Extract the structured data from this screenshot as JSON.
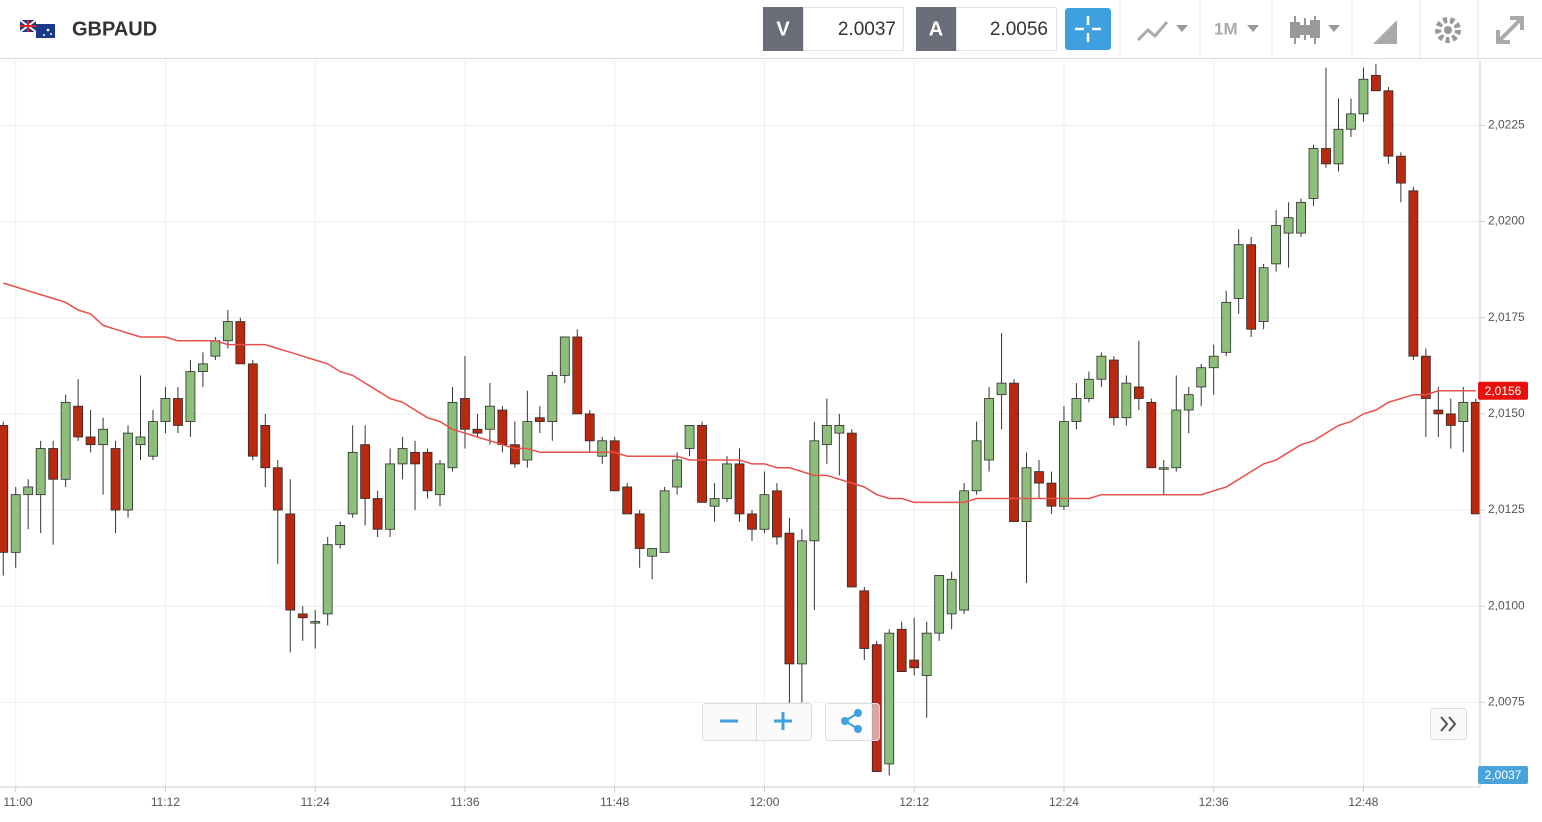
{
  "header": {
    "symbol": "GBPAUD",
    "sell_label": "V",
    "sell_price": "2.0037",
    "buy_label": "A",
    "buy_price": "2.0056",
    "timeframe": "1M"
  },
  "chart_data": {
    "type": "candlestick",
    "categories": [
      null,
      "11:00",
      null,
      null,
      null,
      null,
      null,
      null,
      null,
      null,
      null,
      null,
      null,
      "11:12",
      null,
      null,
      null,
      null,
      null,
      null,
      null,
      null,
      null,
      null,
      null,
      "11:24",
      null,
      null,
      null,
      null,
      null,
      null,
      null,
      null,
      null,
      null,
      null,
      "11:36",
      null,
      null,
      null,
      null,
      null,
      null,
      null,
      null,
      null,
      null,
      null,
      "11:48",
      null,
      null,
      null,
      null,
      null,
      null,
      null,
      null,
      null,
      null,
      null,
      "12:00",
      null,
      null,
      null,
      null,
      null,
      null,
      null,
      null,
      null,
      null,
      null,
      "12:12",
      null,
      null,
      null,
      null,
      null,
      null,
      null,
      null,
      null,
      null,
      null,
      "12:24",
      null,
      null,
      null,
      null,
      null,
      null,
      null,
      null,
      null,
      null,
      null,
      "12:36",
      null,
      null,
      null,
      null,
      null,
      null,
      null,
      null,
      null,
      null,
      null,
      "12:48",
      null,
      null,
      null,
      null,
      null,
      null,
      null,
      null,
      null
    ],
    "open": [
      2.0147,
      2.0114,
      2.0129,
      2.0129,
      2.0141,
      2.0133,
      2.0152,
      2.0144,
      2.0142,
      2.0141,
      2.0125,
      2.0142,
      2.0139,
      2.0148,
      2.0154,
      2.0148,
      2.0161,
      2.0165,
      2.0169,
      2.0174,
      2.0163,
      2.0147,
      2.0136,
      2.0124,
      2.0098,
      2.0096,
      2.0098,
      2.0116,
      2.0124,
      2.0142,
      2.0128,
      2.012,
      2.0137,
      2.014,
      2.014,
      2.0129,
      2.0136,
      2.0154,
      2.0146,
      2.0146,
      2.0151,
      2.0142,
      2.0138,
      2.0149,
      2.0148,
      2.016,
      2.017,
      2.015,
      2.0139,
      2.0143,
      2.0131,
      2.0124,
      2.0113,
      2.0114,
      2.0131,
      2.0141,
      2.0147,
      2.0126,
      2.0128,
      2.0137,
      2.0124,
      2.012,
      2.013,
      2.0119,
      2.0085,
      2.0117,
      2.0142,
      2.0145,
      2.0145,
      2.0104,
      2.009,
      2.0059,
      2.0094,
      2.0086,
      2.0082,
      2.0093,
      2.0098,
      2.0099,
      2.013,
      2.0138,
      2.0155,
      2.0158,
      2.0122,
      2.0135,
      2.0132,
      2.0126,
      2.0148,
      2.0154,
      2.0159,
      2.0164,
      2.0149,
      2.0157,
      2.0153,
      2.0136,
      2.0136,
      2.0151,
      2.0157,
      2.0162,
      2.0166,
      2.018,
      2.0194,
      2.0174,
      2.0189,
      2.0197,
      2.0197,
      2.0206,
      2.0219,
      2.0215,
      2.0224,
      2.0228,
      2.0238,
      2.0234,
      2.0217,
      2.0208,
      2.0165,
      2.0151,
      2.015,
      2.0148,
      2.0153
    ],
    "high": [
      2.0148,
      2.0131,
      2.0133,
      2.0143,
      2.0143,
      2.0155,
      2.0159,
      2.0151,
      2.0149,
      2.0143,
      2.0147,
      2.016,
      2.0151,
      2.0157,
      2.0157,
      2.0164,
      2.0166,
      2.017,
      2.0177,
      2.0175,
      2.0164,
      2.015,
      2.0138,
      2.0133,
      2.01,
      2.0099,
      2.0118,
      2.0122,
      2.0147,
      2.0147,
      2.013,
      2.0141,
      2.0144,
      2.0143,
      2.0141,
      2.0138,
      2.0157,
      2.0165,
      2.015,
      2.0158,
      2.0152,
      2.0148,
      2.0156,
      2.0152,
      2.0161,
      2.017,
      2.0172,
      2.0151,
      2.0144,
      2.0144,
      2.0132,
      2.0125,
      2.0115,
      2.0131,
      2.014,
      2.0147,
      2.0148,
      2.0132,
      2.0139,
      2.0141,
      2.0125,
      2.0135,
      2.0132,
      2.0123,
      2.012,
      2.0148,
      2.0154,
      2.015,
      2.0146,
      2.0105,
      2.0091,
      2.0094,
      2.0096,
      2.0097,
      2.0096,
      2.0108,
      2.0109,
      2.0132,
      2.0148,
      2.0157,
      2.0171,
      2.0159,
      2.014,
      2.0138,
      2.0135,
      2.0152,
      2.0158,
      2.0161,
      2.0166,
      2.0165,
      2.016,
      2.0169,
      2.0154,
      2.0138,
      2.016,
      2.0157,
      2.0163,
      2.0168,
      2.0182,
      2.0198,
      2.0196,
      2.0189,
      2.0203,
      2.0205,
      2.0206,
      2.022,
      2.024,
      2.0232,
      2.0232,
      2.024,
      2.0241,
      2.0235,
      2.0218,
      2.0209,
      2.0167,
      2.0157,
      2.0154,
      2.0157,
      2.0154
    ],
    "low": [
      2.0108,
      2.011,
      2.012,
      2.0119,
      2.0116,
      2.0131,
      2.0143,
      2.014,
      2.0129,
      2.0119,
      2.0123,
      2.0138,
      2.0138,
      2.0145,
      2.0145,
      2.0144,
      2.0157,
      2.0164,
      2.0167,
      2.0163,
      2.0138,
      2.0131,
      2.0111,
      2.0088,
      2.0091,
      2.0089,
      2.0095,
      2.0115,
      2.0123,
      2.0121,
      2.0118,
      2.0118,
      2.0133,
      2.0125,
      2.0128,
      2.0126,
      2.0135,
      2.0141,
      2.0144,
      2.0142,
      2.014,
      2.0136,
      2.0136,
      2.0145,
      2.0143,
      2.0158,
      2.015,
      2.014,
      2.0137,
      2.013,
      2.0124,
      2.011,
      2.0107,
      2.0114,
      2.0129,
      2.0139,
      2.0127,
      2.0122,
      2.0127,
      2.0122,
      2.0117,
      2.0119,
      2.0116,
      2.0074,
      2.0075,
      2.0099,
      2.0137,
      2.0134,
      2.0105,
      2.0086,
      2.0057,
      2.0056,
      2.0083,
      2.0082,
      2.0071,
      2.0091,
      2.0094,
      2.0098,
      2.0129,
      2.0135,
      2.0146,
      2.0122,
      2.0106,
      2.0128,
      2.0124,
      2.0125,
      2.0146,
      2.0153,
      2.0157,
      2.0147,
      2.0147,
      2.0151,
      2.0136,
      2.0129,
      2.0135,
      2.0145,
      2.0152,
      2.0155,
      2.0165,
      2.0176,
      2.017,
      2.0172,
      2.0187,
      2.0188,
      2.0196,
      2.0204,
      2.0214,
      2.0213,
      2.0222,
      2.0226,
      2.0234,
      2.0215,
      2.0205,
      2.0164,
      2.0144,
      2.0144,
      2.0141,
      2.014,
      2.0124
    ],
    "close": [
      2.0114,
      2.0129,
      2.0131,
      2.0141,
      2.0133,
      2.0153,
      2.0144,
      2.0142,
      2.0146,
      2.0125,
      2.0145,
      2.0144,
      2.0148,
      2.0154,
      2.0147,
      2.0161,
      2.0163,
      2.0169,
      2.0174,
      2.0163,
      2.0139,
      2.0136,
      2.0125,
      2.0099,
      2.0097,
      2.0096,
      2.0116,
      2.0121,
      2.014,
      2.0128,
      2.012,
      2.0137,
      2.0141,
      2.0137,
      2.013,
      2.0137,
      2.0153,
      2.0146,
      2.0145,
      2.0152,
      2.0142,
      2.0137,
      2.0148,
      2.0148,
      2.016,
      2.017,
      2.015,
      2.0143,
      2.0143,
      2.013,
      2.0124,
      2.0115,
      2.0115,
      2.013,
      2.0138,
      2.0147,
      2.0127,
      2.0128,
      2.0137,
      2.0124,
      2.012,
      2.0129,
      2.0118,
      2.0085,
      2.0117,
      2.0143,
      2.0147,
      2.0147,
      2.0105,
      2.0089,
      2.0057,
      2.0093,
      2.0083,
      2.0084,
      2.0093,
      2.0108,
      2.0107,
      2.013,
      2.0143,
      2.0154,
      2.0158,
      2.0122,
      2.0136,
      2.0132,
      2.0126,
      2.0148,
      2.0154,
      2.0159,
      2.0165,
      2.0149,
      2.0158,
      2.0154,
      2.0136,
      2.0136,
      2.0151,
      2.0155,
      2.0162,
      2.0165,
      2.0179,
      2.0194,
      2.0172,
      2.0188,
      2.0199,
      2.0201,
      2.0205,
      2.0219,
      2.0215,
      2.0224,
      2.0228,
      2.0237,
      2.0234,
      2.0217,
      2.021,
      2.0165,
      2.0154,
      2.015,
      2.0147,
      2.0153,
      2.0124
    ],
    "up_color": "#8dbf7a",
    "down_color": "#b8290f",
    "moving_average": {
      "color": "#e8504a",
      "values": [
        2.0184,
        2.0183,
        2.0182,
        2.0181,
        2.018,
        2.0179,
        2.0177,
        2.0176,
        2.0173,
        2.0172,
        2.0171,
        2.017,
        2.017,
        2.017,
        2.0169,
        2.0169,
        2.0169,
        2.0169,
        2.0168,
        2.0168,
        2.0168,
        2.0168,
        2.0167,
        2.0166,
        2.0165,
        2.0164,
        2.0163,
        2.0161,
        2.016,
        2.0158,
        2.0156,
        2.0154,
        2.0153,
        2.0151,
        2.0149,
        2.0148,
        2.0146,
        2.0145,
        2.0144,
        2.0143,
        2.0142,
        2.0141,
        2.0141,
        2.014,
        2.014,
        2.014,
        2.014,
        2.014,
        2.014,
        2.014,
        2.0139,
        2.0139,
        2.0139,
        2.0139,
        2.0139,
        2.0138,
        2.0138,
        2.0138,
        2.0138,
        2.0138,
        2.0137,
        2.0137,
        2.0136,
        2.0136,
        2.0135,
        2.0134,
        2.0134,
        2.0133,
        2.0132,
        2.0131,
        2.0129,
        2.0128,
        2.0128,
        2.0127,
        2.0127,
        2.0127,
        2.0127,
        2.0127,
        2.0128,
        2.0128,
        2.0128,
        2.0128,
        2.0128,
        2.0128,
        2.0128,
        2.0128,
        2.0128,
        2.0128,
        2.0129,
        2.0129,
        2.0129,
        2.0129,
        2.0129,
        2.0129,
        2.0129,
        2.0129,
        2.0129,
        2.013,
        2.0131,
        2.0133,
        2.0135,
        2.0137,
        2.0138,
        2.014,
        2.0142,
        2.0143,
        2.0145,
        2.0147,
        2.0148,
        2.015,
        2.0151,
        2.0153,
        2.0154,
        2.0155,
        2.0155,
        2.0156,
        2.0156,
        2.0156,
        2.0156
      ]
    },
    "ylim": [
      2.0053,
      2.0242
    ],
    "yticks": [
      {
        "value": 2.0075,
        "label": "2,0075"
      },
      {
        "value": 2.01,
        "label": "2,0100"
      },
      {
        "value": 2.0125,
        "label": "2,0125"
      },
      {
        "value": 2.015,
        "label": "2,0150"
      },
      {
        "value": 2.0175,
        "label": "2,0175"
      },
      {
        "value": 2.02,
        "label": "2,0200"
      },
      {
        "value": 2.0225,
        "label": "2,0225"
      }
    ],
    "grid": true,
    "price_labels": [
      {
        "value": 2.0156,
        "label": "2,0156",
        "color": "#e8100a"
      },
      {
        "value": 2.0037,
        "label": "2,0037",
        "color": "#4aa3d8"
      }
    ]
  }
}
